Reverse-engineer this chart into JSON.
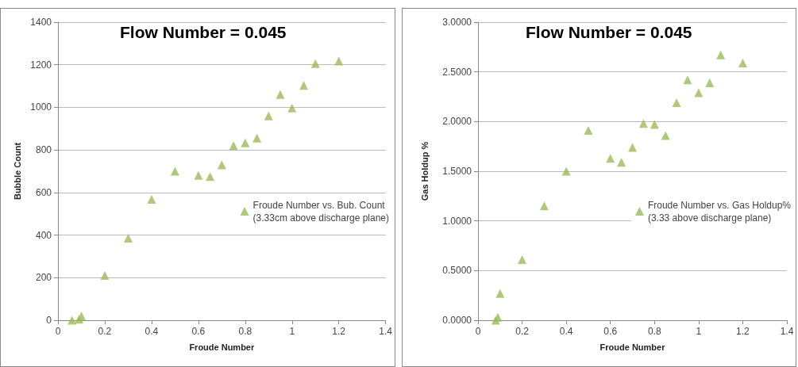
{
  "chart_data": [
    {
      "type": "scatter",
      "title": "Flow Number = 0.045",
      "xlabel": "Froude Number",
      "ylabel": "Bubble Count",
      "xlim": [
        0,
        1.4
      ],
      "xticks": [
        0,
        0.2,
        0.4,
        0.6,
        0.8,
        1,
        1.2,
        1.4
      ],
      "ylim": [
        0,
        1400
      ],
      "yticks": [
        0,
        200,
        400,
        600,
        800,
        1000,
        1200,
        1400
      ],
      "grid": "y",
      "legend": "right",
      "marker": "triangle",
      "series": [
        {
          "name": "Froude Number vs. Bub. Count\n(3.33cm above discharge plane)",
          "color": "#9bbb59",
          "x": [
            0.06,
            0.07,
            0.08,
            0.09,
            0.1,
            0.2,
            0.3,
            0.4,
            0.5,
            0.6,
            0.65,
            0.7,
            0.75,
            0.8,
            0.85,
            0.9,
            0.95,
            1.0,
            1.05,
            1.1,
            1.2
          ],
          "values": [
            0,
            null,
            null,
            5,
            20,
            210,
            385,
            568,
            700,
            680,
            675,
            730,
            820,
            833,
            855,
            960,
            1060,
            997,
            1103,
            1205,
            1218
          ]
        }
      ]
    },
    {
      "type": "scatter",
      "title": "Flow Number = 0.045",
      "xlabel": "Froude Number",
      "ylabel": "Gas Holdup %",
      "xlim": [
        0,
        1.4
      ],
      "xticks": [
        0,
        0.2,
        0.4,
        0.6,
        0.8,
        1,
        1.2,
        1.4
      ],
      "ylim": [
        0,
        3
      ],
      "yticks": [
        {
          "value": 0,
          "label": "0.0000"
        },
        {
          "value": 0.5,
          "label": "0.5000"
        },
        {
          "value": 1,
          "label": "1.0000"
        },
        {
          "value": 1.5,
          "label": "1.5000"
        },
        {
          "value": 2,
          "label": "2.0000"
        },
        {
          "value": 2.5,
          "label": "2.5000"
        },
        {
          "value": 3,
          "label": "3.0000"
        }
      ],
      "grid": "y",
      "legend": "right",
      "marker": "triangle",
      "series": [
        {
          "name": "Froude Number vs. Gas Holdup%\n(3.33 above discharge plane)",
          "color": "#9bbb59",
          "x": [
            0.08,
            0.09,
            0.1,
            0.2,
            0.3,
            0.4,
            0.5,
            0.6,
            0.65,
            0.7,
            0.75,
            0.8,
            0.85,
            0.9,
            0.95,
            1.0,
            1.05,
            1.1,
            1.2
          ],
          "values": [
            0,
            0.03,
            0.27,
            0.61,
            1.15,
            1.5,
            1.91,
            1.63,
            1.59,
            1.74,
            1.98,
            1.97,
            1.86,
            2.19,
            2.42,
            2.29,
            2.39,
            2.67,
            2.59
          ]
        }
      ]
    }
  ]
}
